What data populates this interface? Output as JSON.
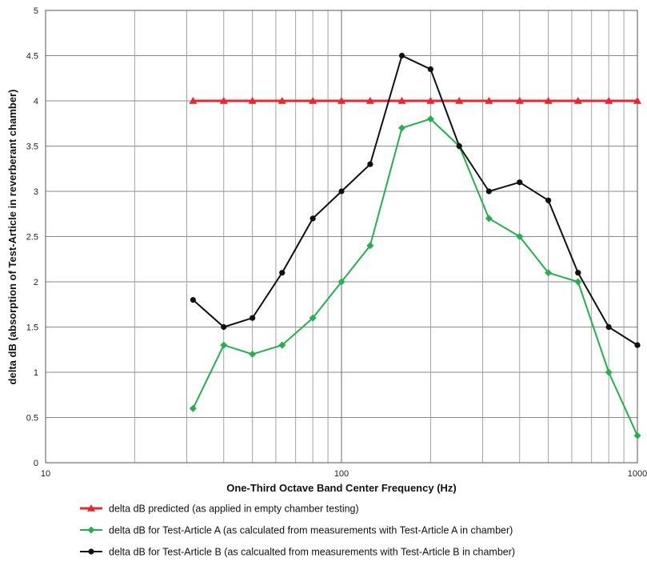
{
  "chart_data": {
    "type": "line",
    "title": "",
    "xlabel": "One-Third Octave Band Center Frequency (Hz)",
    "ylabel": "delta dB (absorption of Test-Article in reverberant chamber)",
    "x_scale": "log",
    "xlim": [
      10,
      1000
    ],
    "ylim": [
      0,
      5
    ],
    "grid": true,
    "x_tick_labels": [
      {
        "value": 10,
        "label": "10"
      },
      {
        "value": 100,
        "label": "100"
      },
      {
        "value": 1000,
        "label": "1000"
      }
    ],
    "y_tick_labels": [
      "0",
      "0.5",
      "1",
      "1.5",
      "2",
      "2.5",
      "3",
      "3.5",
      "4",
      "4.5",
      "5"
    ],
    "x": [
      31.5,
      40,
      50,
      63,
      80,
      100,
      125,
      160,
      200,
      250,
      315,
      400,
      500,
      630,
      800,
      1000
    ],
    "legend_position": "bottom",
    "series": [
      {
        "name": "delta dB predicted (as applied in empty chamber testing)",
        "color": "#e8262b",
        "marker": "triangle",
        "values": [
          4,
          4,
          4,
          4,
          4,
          4,
          4,
          4,
          4,
          4,
          4,
          4,
          4,
          4,
          4,
          4
        ]
      },
      {
        "name": "delta dB for Test-Article A (as calculated from measurements with Test-Article A in chamber)",
        "color": "#22b14c",
        "marker": "diamond",
        "values": [
          0.6,
          1.3,
          1.2,
          1.3,
          1.6,
          2.0,
          2.4,
          3.7,
          3.8,
          3.5,
          2.7,
          2.5,
          2.1,
          2.0,
          1.0,
          0.3
        ]
      },
      {
        "name": "delta dB for Test-Article B (as calcualted from measurements with Test-Article B in chamber)",
        "color": "#111111",
        "marker": "circle",
        "values": [
          1.8,
          1.5,
          1.6,
          2.1,
          2.7,
          3.0,
          3.3,
          4.5,
          4.35,
          3.5,
          3.0,
          3.1,
          2.9,
          2.1,
          1.5,
          1.3
        ]
      }
    ]
  }
}
